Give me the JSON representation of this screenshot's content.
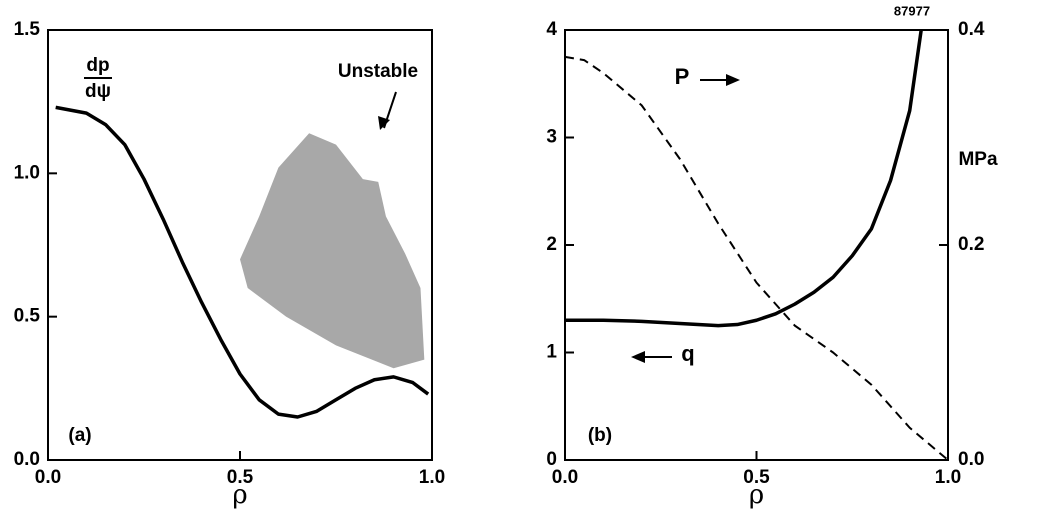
{
  "chart_data": [
    {
      "type": "line",
      "x": [
        0.02,
        0.1,
        0.15,
        0.2,
        0.25,
        0.3,
        0.35,
        0.4,
        0.45,
        0.5,
        0.55,
        0.6,
        0.65,
        0.7,
        0.75,
        0.8,
        0.85,
        0.9,
        0.95,
        0.99
      ],
      "series": [
        {
          "color": "#000000",
          "style": "solid",
          "values": [
            1.23,
            1.21,
            1.17,
            1.1,
            0.98,
            0.84,
            0.69,
            0.55,
            0.42,
            0.3,
            0.21,
            0.16,
            0.15,
            0.17,
            0.21,
            0.25,
            0.28,
            0.29,
            0.27,
            0.23
          ]
        }
      ],
      "region": {
        "color": "#a8a8a8",
        "x": [
          0.5,
          0.55,
          0.6,
          0.68,
          0.75,
          0.82,
          0.86,
          0.88,
          0.93,
          0.97,
          0.98,
          0.9,
          0.75,
          0.62,
          0.52
        ],
        "y": [
          0.7,
          0.85,
          1.02,
          1.14,
          1.1,
          0.98,
          0.97,
          0.85,
          0.72,
          0.6,
          0.35,
          0.32,
          0.4,
          0.5,
          0.6
        ]
      },
      "xlim": [
        0,
        1
      ],
      "xticks": [
        {
          "value": 0,
          "label": "0.0"
        },
        0.5,
        {
          "value": 1,
          "label": "1.0"
        }
      ],
      "ylim": [
        0,
        1.5
      ],
      "yticks": [
        {
          "value": 0,
          "label": "0.0"
        },
        0.5,
        {
          "value": 1,
          "label": "1.0"
        },
        1.5
      ],
      "xlabel": "ρ",
      "ylabel_top": "dp",
      "ylabel_bottom": "dψ",
      "annotation": "Unstable",
      "panel_label": "(a)"
    },
    {
      "type": "line",
      "series": [
        {
          "name": "q",
          "color": "#000000",
          "style": "solid",
          "x": [
            0,
            0.1,
            0.2,
            0.3,
            0.4,
            0.45,
            0.5,
            0.55,
            0.6,
            0.65,
            0.7,
            0.75,
            0.8,
            0.85,
            0.9,
            0.93
          ],
          "values": [
            1.3,
            1.3,
            1.29,
            1.27,
            1.25,
            1.26,
            1.3,
            1.36,
            1.45,
            1.56,
            1.7,
            1.9,
            2.15,
            2.6,
            3.25,
            4.0
          ]
        },
        {
          "name": "P",
          "color": "#000000",
          "style": "dashed",
          "axis": "y2",
          "x": [
            0,
            0.05,
            0.1,
            0.2,
            0.3,
            0.4,
            0.5,
            0.6,
            0.7,
            0.8,
            0.9,
            1.0
          ],
          "values": [
            0.375,
            0.372,
            0.36,
            0.33,
            0.28,
            0.22,
            0.165,
            0.125,
            0.1,
            0.07,
            0.03,
            0.0
          ]
        }
      ],
      "xlim": [
        0,
        1
      ],
      "xticks": [
        {
          "value": 0,
          "label": "0.0"
        },
        0.5,
        {
          "value": 1,
          "label": "1.0"
        }
      ],
      "ylim": [
        0,
        4
      ],
      "yticks": [
        0,
        1,
        2,
        3,
        4
      ],
      "y2lim": [
        0,
        0.4
      ],
      "y2ticks": [
        {
          "value": 0,
          "label": "0.0"
        },
        0.2,
        0.4
      ],
      "xlabel": "ρ",
      "y2label": "MPa",
      "shot": "87977",
      "panel_label": "(b)"
    }
  ]
}
